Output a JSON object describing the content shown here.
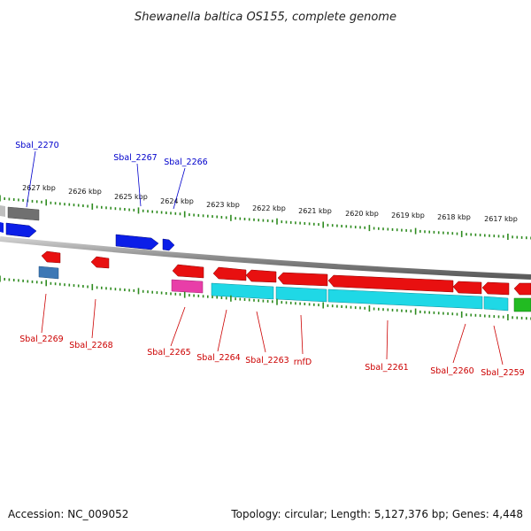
{
  "title": "Shewanella baltica OS155, complete genome",
  "accession_text": "Accession: NC_009052",
  "topology_text": "Topology: circular; Length: 5,127,376 bp; Genes: 4,448",
  "colors": {
    "forward_label": "#0000cc",
    "reverse_label": "#cc0000",
    "tick": "#2e8b1f",
    "backbone": "#8a8a8a"
  },
  "kbp_ticks": [
    "2627 kbp",
    "2626 kbp",
    "2625 kbp",
    "2624 kbp",
    "2623 kbp",
    "2622 kbp",
    "2621 kbp",
    "2620 kbp",
    "2619 kbp",
    "2618 kbp",
    "2617 kbp"
  ],
  "gene_labels": [
    {
      "text": "Sbal_2270",
      "strand": "forward"
    },
    {
      "text": "Sbal_2267",
      "strand": "forward"
    },
    {
      "text": "Sbal_2266",
      "strand": "forward"
    },
    {
      "text": "Sbal_2269",
      "strand": "reverse"
    },
    {
      "text": "Sbal_2268",
      "strand": "reverse"
    },
    {
      "text": "Sbal_2265",
      "strand": "reverse"
    },
    {
      "text": "Sbal_2264",
      "strand": "reverse"
    },
    {
      "text": "Sbal_2263",
      "strand": "reverse"
    },
    {
      "text": "rnfD",
      "strand": "reverse"
    },
    {
      "text": "Sbal_2261",
      "strand": "reverse"
    },
    {
      "text": "Sbal_2260",
      "strand": "reverse"
    },
    {
      "text": "Sbal_2259",
      "strand": "reverse"
    }
  ],
  "feature_colors": {
    "forward_cds": "#0b1ee8",
    "grey": "#777777",
    "reverse_cds": "#e81010",
    "steelblue": "#3d78b5",
    "magenta": "#e83ea8",
    "cyan": "#1fd8e6",
    "green": "#22bb22"
  }
}
